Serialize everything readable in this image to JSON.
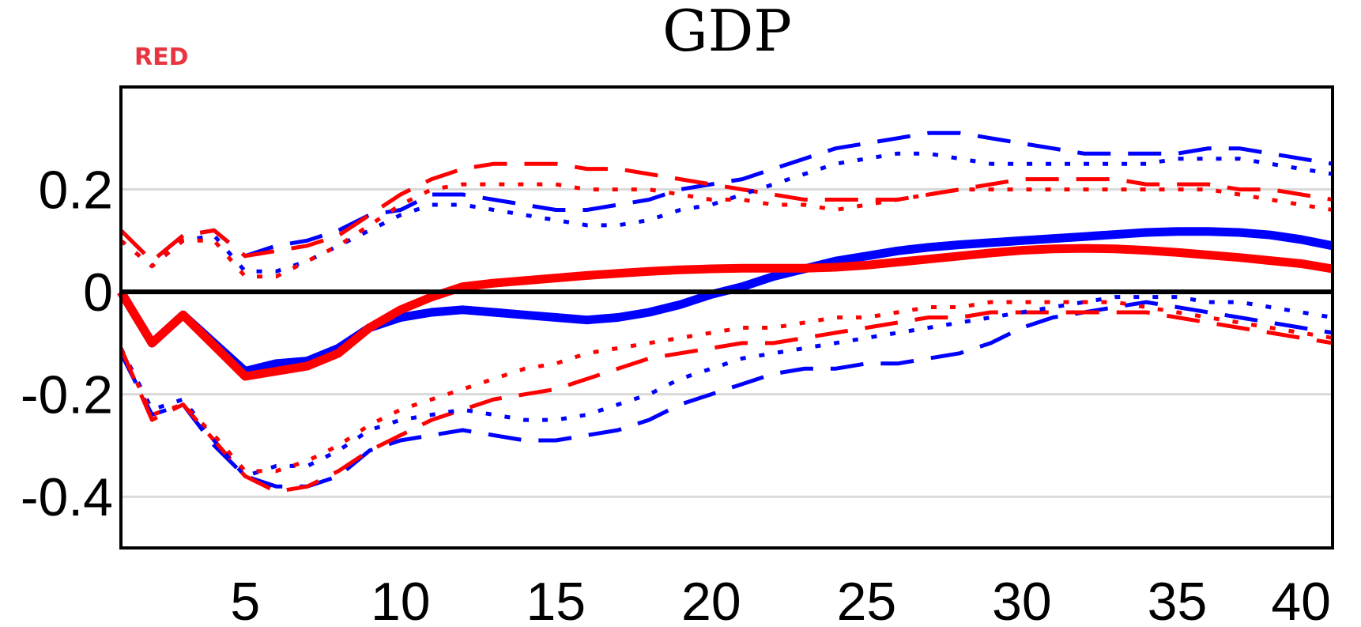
{
  "chart_data": {
    "type": "line",
    "title": "GDP",
    "tag": "RED",
    "xlabel": "",
    "ylabel": "",
    "xlim": [
      1,
      40
    ],
    "ylim": [
      -0.5,
      0.4
    ],
    "xticks": [
      5,
      10,
      15,
      20,
      25,
      30,
      35,
      40
    ],
    "yticks": [
      {
        "value": 0.2,
        "label": "0.2"
      },
      {
        "value": 0,
        "label": "0"
      },
      {
        "value": -0.2,
        "label": "-0.2"
      },
      {
        "value": -0.4,
        "label": "-0.4"
      }
    ],
    "grid": "horizontal",
    "zero_line": true,
    "colors": {
      "blue": "#0000ff",
      "red": "#ff0000",
      "tag": "#e8353f",
      "grid": "#d9d9d9"
    },
    "x": [
      1,
      2,
      3,
      4,
      5,
      6,
      7,
      8,
      9,
      10,
      11,
      12,
      13,
      14,
      15,
      16,
      17,
      18,
      19,
      20,
      21,
      22,
      23,
      24,
      25,
      26,
      27,
      28,
      29,
      30,
      31,
      32,
      33,
      34,
      35,
      36,
      37,
      38,
      39,
      40
    ],
    "series": [
      {
        "color": "blue",
        "style": "solid-thick",
        "values": [
          0.0,
          -0.1,
          -0.045,
          -0.1,
          -0.155,
          -0.14,
          -0.135,
          -0.11,
          -0.07,
          -0.05,
          -0.04,
          -0.035,
          -0.04,
          -0.045,
          -0.05,
          -0.055,
          -0.05,
          -0.04,
          -0.025,
          -0.005,
          0.01,
          0.03,
          0.045,
          0.06,
          0.07,
          0.08,
          0.087,
          0.092,
          0.096,
          0.1,
          0.104,
          0.108,
          0.112,
          0.116,
          0.118,
          0.118,
          0.116,
          0.111,
          0.102,
          0.09
        ]
      },
      {
        "color": "red",
        "style": "solid-thick",
        "values": [
          0.0,
          -0.1,
          -0.045,
          -0.105,
          -0.165,
          -0.155,
          -0.145,
          -0.12,
          -0.07,
          -0.035,
          -0.01,
          0.01,
          0.017,
          0.022,
          0.027,
          0.032,
          0.036,
          0.04,
          0.043,
          0.045,
          0.046,
          0.046,
          0.046,
          0.048,
          0.052,
          0.058,
          0.064,
          0.07,
          0.076,
          0.081,
          0.084,
          0.085,
          0.084,
          0.081,
          0.077,
          0.072,
          0.067,
          0.061,
          0.055,
          0.045
        ]
      },
      {
        "color": "blue",
        "style": "dashed",
        "values": [
          0.12,
          0.06,
          0.11,
          0.12,
          0.07,
          0.09,
          0.1,
          0.12,
          0.15,
          0.16,
          0.19,
          0.19,
          0.18,
          0.17,
          0.16,
          0.16,
          0.17,
          0.18,
          0.2,
          0.21,
          0.22,
          0.24,
          0.26,
          0.28,
          0.29,
          0.3,
          0.31,
          0.31,
          0.3,
          0.29,
          0.28,
          0.27,
          0.27,
          0.27,
          0.27,
          0.28,
          0.28,
          0.27,
          0.26,
          0.25
        ]
      },
      {
        "color": "red",
        "style": "dashed",
        "values": [
          0.12,
          0.06,
          0.11,
          0.12,
          0.07,
          0.08,
          0.09,
          0.11,
          0.15,
          0.19,
          0.22,
          0.24,
          0.25,
          0.25,
          0.25,
          0.24,
          0.24,
          0.23,
          0.22,
          0.21,
          0.2,
          0.19,
          0.18,
          0.18,
          0.18,
          0.18,
          0.19,
          0.2,
          0.21,
          0.22,
          0.22,
          0.22,
          0.22,
          0.21,
          0.21,
          0.21,
          0.2,
          0.2,
          0.19,
          0.18
        ]
      },
      {
        "color": "blue",
        "style": "dotted",
        "values": [
          0.1,
          0.05,
          0.1,
          0.11,
          0.04,
          0.04,
          0.06,
          0.09,
          0.12,
          0.15,
          0.17,
          0.17,
          0.16,
          0.15,
          0.14,
          0.13,
          0.13,
          0.14,
          0.16,
          0.17,
          0.19,
          0.21,
          0.23,
          0.25,
          0.26,
          0.27,
          0.27,
          0.26,
          0.25,
          0.25,
          0.25,
          0.25,
          0.25,
          0.25,
          0.26,
          0.26,
          0.26,
          0.25,
          0.24,
          0.23
        ]
      },
      {
        "color": "red",
        "style": "dotted",
        "values": [
          0.1,
          0.05,
          0.1,
          0.1,
          0.03,
          0.03,
          0.06,
          0.09,
          0.13,
          0.17,
          0.2,
          0.21,
          0.21,
          0.21,
          0.21,
          0.2,
          0.2,
          0.2,
          0.19,
          0.18,
          0.18,
          0.17,
          0.17,
          0.16,
          0.17,
          0.18,
          0.19,
          0.2,
          0.2,
          0.2,
          0.2,
          0.2,
          0.2,
          0.2,
          0.2,
          0.2,
          0.19,
          0.18,
          0.17,
          0.16
        ]
      },
      {
        "color": "blue",
        "style": "dashed",
        "values": [
          -0.12,
          -0.24,
          -0.22,
          -0.3,
          -0.36,
          -0.38,
          -0.38,
          -0.36,
          -0.31,
          -0.29,
          -0.28,
          -0.27,
          -0.28,
          -0.29,
          -0.29,
          -0.28,
          -0.27,
          -0.25,
          -0.22,
          -0.2,
          -0.18,
          -0.16,
          -0.15,
          -0.15,
          -0.14,
          -0.14,
          -0.13,
          -0.12,
          -0.1,
          -0.07,
          -0.05,
          -0.04,
          -0.03,
          -0.02,
          -0.03,
          -0.04,
          -0.05,
          -0.06,
          -0.07,
          -0.08
        ]
      },
      {
        "color": "red",
        "style": "dashed",
        "values": [
          -0.11,
          -0.25,
          -0.22,
          -0.29,
          -0.36,
          -0.39,
          -0.38,
          -0.35,
          -0.31,
          -0.28,
          -0.25,
          -0.23,
          -0.21,
          -0.2,
          -0.19,
          -0.17,
          -0.15,
          -0.13,
          -0.12,
          -0.11,
          -0.1,
          -0.1,
          -0.09,
          -0.08,
          -0.07,
          -0.06,
          -0.05,
          -0.05,
          -0.04,
          -0.04,
          -0.04,
          -0.04,
          -0.04,
          -0.04,
          -0.05,
          -0.06,
          -0.07,
          -0.08,
          -0.09,
          -0.1
        ]
      },
      {
        "color": "blue",
        "style": "dotted",
        "values": [
          -0.11,
          -0.23,
          -0.21,
          -0.29,
          -0.36,
          -0.34,
          -0.34,
          -0.31,
          -0.27,
          -0.25,
          -0.24,
          -0.23,
          -0.24,
          -0.25,
          -0.25,
          -0.24,
          -0.22,
          -0.2,
          -0.17,
          -0.15,
          -0.13,
          -0.12,
          -0.11,
          -0.1,
          -0.09,
          -0.08,
          -0.07,
          -0.06,
          -0.05,
          -0.04,
          -0.03,
          -0.02,
          -0.01,
          -0.01,
          -0.01,
          -0.02,
          -0.02,
          -0.03,
          -0.04,
          -0.05
        ]
      },
      {
        "color": "red",
        "style": "dotted",
        "values": [
          -0.11,
          -0.24,
          -0.22,
          -0.28,
          -0.35,
          -0.35,
          -0.33,
          -0.3,
          -0.26,
          -0.23,
          -0.21,
          -0.19,
          -0.17,
          -0.15,
          -0.14,
          -0.12,
          -0.11,
          -0.1,
          -0.09,
          -0.08,
          -0.07,
          -0.07,
          -0.06,
          -0.05,
          -0.05,
          -0.04,
          -0.03,
          -0.03,
          -0.02,
          -0.02,
          -0.02,
          -0.02,
          -0.02,
          -0.03,
          -0.04,
          -0.05,
          -0.06,
          -0.07,
          -0.08,
          -0.09
        ]
      }
    ]
  }
}
